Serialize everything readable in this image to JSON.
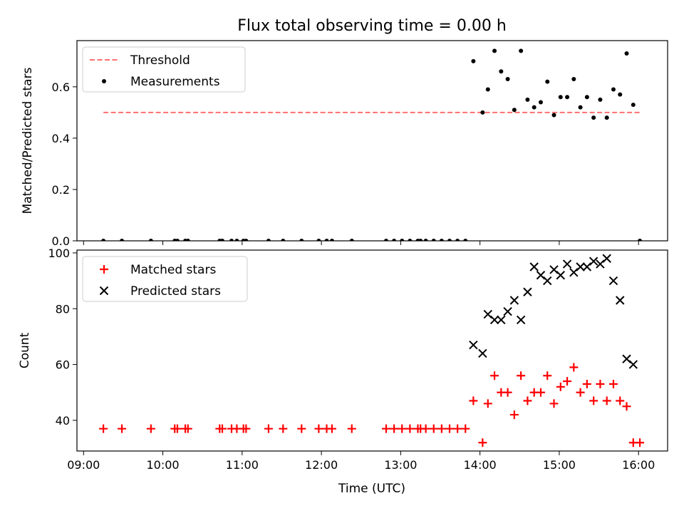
{
  "figure": {
    "title": "Flux total observing time = 0.00 h",
    "xlabel": "Time (UTC)"
  },
  "chart_data": [
    {
      "type": "scatter",
      "ylabel": "Matched/Predicted stars",
      "xlim": [
        "08:55",
        "16:22"
      ],
      "ylim": [
        0,
        0.78
      ],
      "yticks": [
        0.0,
        0.2,
        0.4,
        0.6
      ],
      "ytick_labels": [
        "0.0",
        "0.2",
        "0.4",
        "0.6"
      ],
      "legend": {
        "location": "upper-left",
        "entries": [
          "Threshold",
          "Measurements"
        ]
      },
      "threshold": {
        "name": "Threshold",
        "y": 0.5,
        "x": [
          "09:15",
          "16:01"
        ],
        "color": "#ff7070",
        "style": "dashed"
      },
      "series": [
        {
          "name": "Measurements",
          "color": "#000000",
          "marker": "dot",
          "points": [
            [
              "09:15",
              0
            ],
            [
              "09:29",
              0
            ],
            [
              "09:51",
              0
            ],
            [
              "10:09",
              0
            ],
            [
              "10:11",
              0
            ],
            [
              "10:17",
              0
            ],
            [
              "10:19",
              0
            ],
            [
              "10:43",
              0
            ],
            [
              "10:45",
              0
            ],
            [
              "10:52",
              0
            ],
            [
              "10:56",
              0
            ],
            [
              "11:01",
              0
            ],
            [
              "11:03",
              0
            ],
            [
              "11:20",
              0
            ],
            [
              "11:31",
              0
            ],
            [
              "11:45",
              0
            ],
            [
              "11:58",
              0
            ],
            [
              "12:04",
              0
            ],
            [
              "12:08",
              0
            ],
            [
              "12:23",
              0
            ],
            [
              "12:49",
              0
            ],
            [
              "12:55",
              0
            ],
            [
              "13:01",
              0
            ],
            [
              "13:07",
              0
            ],
            [
              "13:13",
              0
            ],
            [
              "13:15",
              0
            ],
            [
              "13:19",
              0
            ],
            [
              "13:25",
              0
            ],
            [
              "13:31",
              0
            ],
            [
              "13:37",
              0
            ],
            [
              "13:43",
              0
            ],
            [
              "13:49",
              0
            ],
            [
              "13:55",
              0.7
            ],
            [
              "14:02",
              0.5
            ],
            [
              "14:06",
              0.59
            ],
            [
              "14:11",
              0.74
            ],
            [
              "14:16",
              0.66
            ],
            [
              "14:21",
              0.63
            ],
            [
              "14:26",
              0.51
            ],
            [
              "14:31",
              0.74
            ],
            [
              "14:36",
              0.55
            ],
            [
              "14:41",
              0.52
            ],
            [
              "14:46",
              0.54
            ],
            [
              "14:51",
              0.62
            ],
            [
              "14:56",
              0.49
            ],
            [
              "15:01",
              0.56
            ],
            [
              "15:06",
              0.56
            ],
            [
              "15:11",
              0.63
            ],
            [
              "15:16",
              0.52
            ],
            [
              "15:21",
              0.56
            ],
            [
              "15:26",
              0.48
            ],
            [
              "15:31",
              0.55
            ],
            [
              "15:36",
              0.48
            ],
            [
              "15:41",
              0.59
            ],
            [
              "15:46",
              0.57
            ],
            [
              "15:51",
              0.73
            ],
            [
              "15:56",
              0.53
            ],
            [
              "16:01",
              0
            ]
          ]
        }
      ]
    },
    {
      "type": "scatter",
      "ylabel": "Count",
      "xlim": [
        "08:55",
        "16:22"
      ],
      "ylim": [
        29,
        101
      ],
      "yticks": [
        40,
        60,
        80,
        100
      ],
      "ytick_labels": [
        "40",
        "60",
        "80",
        "100"
      ],
      "xticks": [
        "09:00",
        "10:00",
        "11:00",
        "12:00",
        "13:00",
        "14:00",
        "15:00",
        "16:00"
      ],
      "xtick_labels": [
        "09:00",
        "10:00",
        "11:00",
        "12:00",
        "13:00",
        "14:00",
        "15:00",
        "16:00"
      ],
      "legend": {
        "location": "upper-left",
        "entries": [
          "Matched stars",
          "Predicted stars"
        ]
      },
      "series": [
        {
          "name": "Matched stars",
          "color": "#ff0000",
          "marker": "plus",
          "points": [
            [
              "09:15",
              37
            ],
            [
              "09:29",
              37
            ],
            [
              "09:51",
              37
            ],
            [
              "10:09",
              37
            ],
            [
              "10:11",
              37
            ],
            [
              "10:17",
              37
            ],
            [
              "10:19",
              37
            ],
            [
              "10:43",
              37
            ],
            [
              "10:45",
              37
            ],
            [
              "10:52",
              37
            ],
            [
              "10:56",
              37
            ],
            [
              "11:01",
              37
            ],
            [
              "11:03",
              37
            ],
            [
              "11:20",
              37
            ],
            [
              "11:31",
              37
            ],
            [
              "11:45",
              37
            ],
            [
              "11:58",
              37
            ],
            [
              "12:04",
              37
            ],
            [
              "12:08",
              37
            ],
            [
              "12:23",
              37
            ],
            [
              "12:49",
              37
            ],
            [
              "12:55",
              37
            ],
            [
              "13:01",
              37
            ],
            [
              "13:07",
              37
            ],
            [
              "13:13",
              37
            ],
            [
              "13:15",
              37
            ],
            [
              "13:19",
              37
            ],
            [
              "13:25",
              37
            ],
            [
              "13:31",
              37
            ],
            [
              "13:37",
              37
            ],
            [
              "13:43",
              37
            ],
            [
              "13:49",
              37
            ],
            [
              "13:55",
              47
            ],
            [
              "14:02",
              32
            ],
            [
              "14:06",
              46
            ],
            [
              "14:11",
              56
            ],
            [
              "14:16",
              50
            ],
            [
              "14:21",
              50
            ],
            [
              "14:26",
              42
            ],
            [
              "14:31",
              56
            ],
            [
              "14:36",
              47
            ],
            [
              "14:41",
              50
            ],
            [
              "14:46",
              50
            ],
            [
              "14:51",
              56
            ],
            [
              "14:56",
              46
            ],
            [
              "15:01",
              52
            ],
            [
              "15:06",
              54
            ],
            [
              "15:11",
              59
            ],
            [
              "15:16",
              50
            ],
            [
              "15:21",
              53
            ],
            [
              "15:26",
              47
            ],
            [
              "15:31",
              53
            ],
            [
              "15:36",
              47
            ],
            [
              "15:41",
              53
            ],
            [
              "15:46",
              47
            ],
            [
              "15:51",
              45
            ],
            [
              "15:56",
              32
            ],
            [
              "16:01",
              32
            ]
          ]
        },
        {
          "name": "Predicted stars",
          "color": "#000000",
          "marker": "x",
          "points": [
            [
              "13:55",
              67
            ],
            [
              "14:02",
              64
            ],
            [
              "14:06",
              78
            ],
            [
              "14:11",
              76
            ],
            [
              "14:16",
              76
            ],
            [
              "14:21",
              79
            ],
            [
              "14:26",
              83
            ],
            [
              "14:31",
              76
            ],
            [
              "14:36",
              86
            ],
            [
              "14:41",
              95
            ],
            [
              "14:46",
              92
            ],
            [
              "14:51",
              90
            ],
            [
              "14:56",
              94
            ],
            [
              "15:01",
              92
            ],
            [
              "15:06",
              96
            ],
            [
              "15:11",
              93
            ],
            [
              "15:16",
              95
            ],
            [
              "15:21",
              95
            ],
            [
              "15:26",
              97
            ],
            [
              "15:31",
              96
            ],
            [
              "15:36",
              98
            ],
            [
              "15:41",
              90
            ],
            [
              "15:46",
              83
            ],
            [
              "15:51",
              62
            ],
            [
              "15:56",
              60
            ]
          ]
        }
      ]
    }
  ]
}
